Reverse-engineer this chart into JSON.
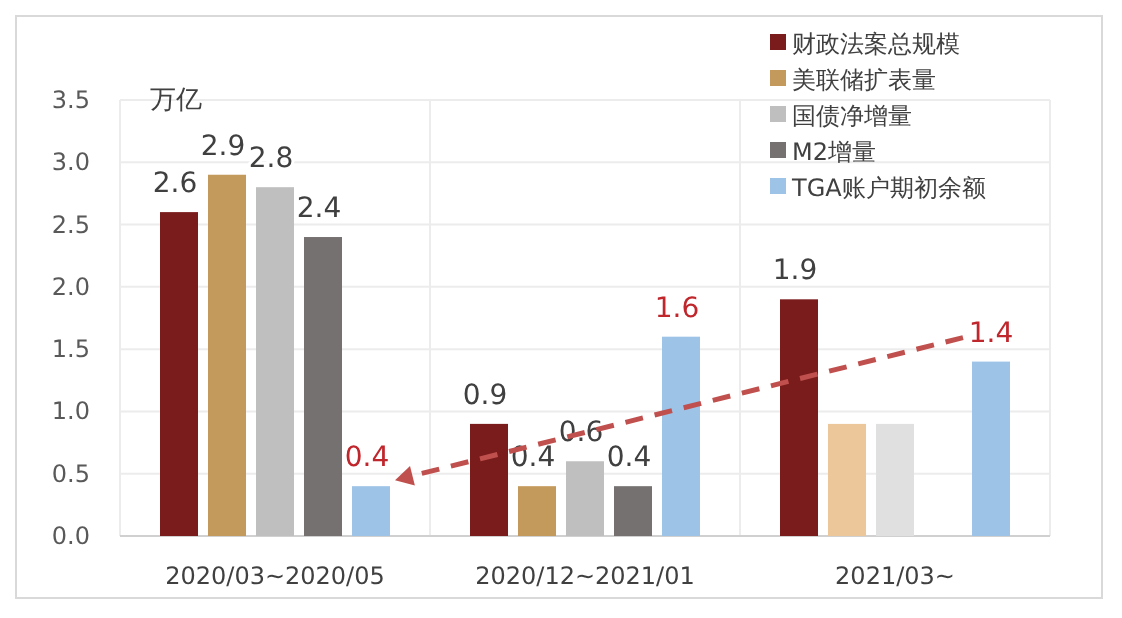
{
  "chart_data": {
    "type": "bar",
    "ylabel": "万亿",
    "categories": [
      "2020/03~2020/05",
      "2020/12~2021/01",
      "2021/03~"
    ],
    "series": [
      {
        "name": "财政法案总规模",
        "color": "#7b1c1c",
        "values": [
          2.6,
          0.9,
          1.9
        ],
        "value_labels": [
          "2.6",
          "0.9",
          "1.9"
        ]
      },
      {
        "name": "美联储扩表量",
        "color": "#c49a5c",
        "colors": [
          "#c49a5c",
          "#c49a5c",
          "#ecc79a"
        ],
        "values": [
          2.9,
          0.4,
          0.9
        ],
        "value_labels": [
          "2.9",
          "0.4",
          null
        ]
      },
      {
        "name": "国债净增量",
        "color": "#bfbfbf",
        "colors": [
          "#bfbfbf",
          "#bfbfbf",
          "#e0e0e0"
        ],
        "values": [
          2.8,
          0.6,
          0.9
        ],
        "value_labels": [
          "2.8",
          "0.6",
          null
        ]
      },
      {
        "name": "M2增量",
        "color": "#767171",
        "values": [
          2.4,
          0.4,
          null
        ],
        "value_labels": [
          "2.4",
          "0.4",
          null
        ]
      },
      {
        "name": "TGA账户期初余额",
        "color": "#9dc3e6",
        "values": [
          0.4,
          1.6,
          1.4
        ],
        "value_labels": [
          "0.4",
          "1.6",
          "1.4"
        ]
      }
    ],
    "ylim": [
      0,
      3.5
    ],
    "yticks": [
      {
        "value": 0,
        "label": "0.0"
      },
      0.5,
      {
        "value": 1,
        "label": "1.0"
      },
      1.5,
      {
        "value": 2,
        "label": "2.0"
      },
      2.5,
      {
        "value": 3,
        "label": "3.0"
      },
      3.5
    ],
    "grid": true,
    "legend": "top right"
  }
}
